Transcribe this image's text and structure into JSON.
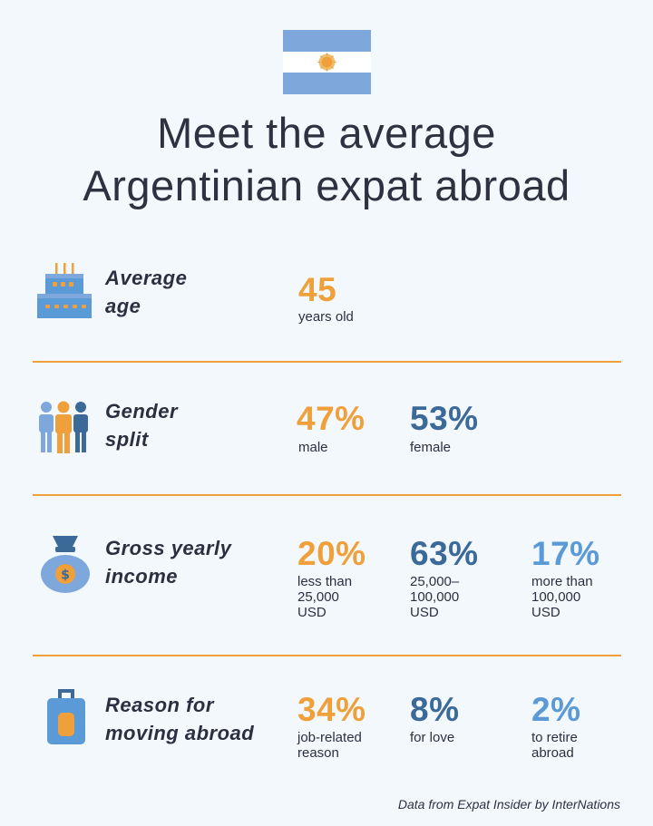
{
  "title": {
    "line1": "Meet the average",
    "line2": "Argentinian expat abroad"
  },
  "flag": {
    "icon": "argentina-flag-icon",
    "colors": [
      "#7ea8dc",
      "#ffffff",
      "#f0a03b"
    ]
  },
  "rows": {
    "age": {
      "icon": "birthday-cake-icon",
      "label_line1": "Average",
      "label_line2": "age",
      "stats": [
        {
          "value": "45",
          "sub": "years old"
        }
      ]
    },
    "gender": {
      "icon": "people-icon",
      "label_line1": "Gender",
      "label_line2": "split",
      "stats": [
        {
          "value": "47%",
          "sub": "male"
        },
        {
          "value": "53%",
          "sub": "female"
        }
      ]
    },
    "income": {
      "icon": "money-bag-icon",
      "label_line1": "Gross yearly",
      "label_line2": "income",
      "stats": [
        {
          "value": "20%",
          "sub_line1": "less than",
          "sub_line2": "25,000",
          "sub_line3": "USD"
        },
        {
          "value": "63%",
          "sub_line1": "25,000–",
          "sub_line2": "100,000",
          "sub_line3": "USD"
        },
        {
          "value": "17%",
          "sub_line1": "more than",
          "sub_line2": "100,000",
          "sub_line3": "USD"
        }
      ]
    },
    "reason": {
      "icon": "suitcase-icon",
      "label_line1": "Reason for",
      "label_line2": "moving abroad",
      "stats": [
        {
          "value": "34%",
          "sub_line1": "job-related",
          "sub_line2": "reason"
        },
        {
          "value": "8%",
          "sub_line1": "for love",
          "sub_line2": ""
        },
        {
          "value": "2%",
          "sub_line1": "to retire",
          "sub_line2": "abroad"
        }
      ]
    }
  },
  "source": "Data from Expat Insider by InterNations",
  "colors": {
    "orange": "#f0a03b",
    "dark_blue": "#3b6a99",
    "light_blue": "#5a9ad6",
    "background": "#f3f8fd"
  }
}
